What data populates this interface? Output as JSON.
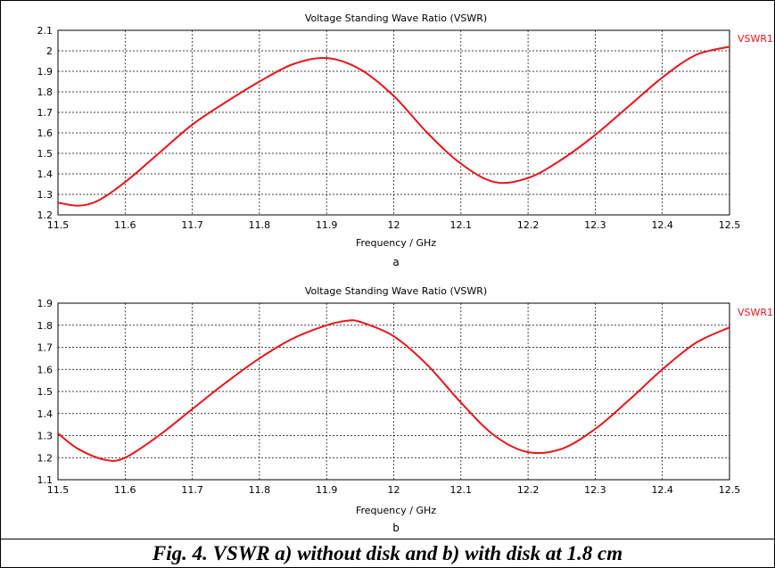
{
  "caption": "Fig. 4. VSWR a) without disk and b) with disk at 1.8 cm",
  "chart_data": [
    {
      "type": "line",
      "title": "Voltage Standing Wave Ratio (VSWR)",
      "xlabel": "Frequency / GHz",
      "ylabel": "",
      "panel_label": "a",
      "xlim": [
        11.5,
        12.5
      ],
      "ylim": [
        1.2,
        2.1
      ],
      "x_ticks": [
        "11.5",
        "11.6",
        "11.7",
        "11.8",
        "11.9",
        "12",
        "12.1",
        "12.2",
        "12.3",
        "12.4",
        "12.5"
      ],
      "y_ticks": [
        "1.2",
        "1.3",
        "1.4",
        "1.5",
        "1.6",
        "1.7",
        "1.8",
        "1.9",
        "2",
        "2.1"
      ],
      "grid": true,
      "legend_position": "right",
      "series": [
        {
          "name": "VSWR1",
          "color": "#e8141b",
          "x": [
            11.5,
            11.53,
            11.56,
            11.6,
            11.65,
            11.7,
            11.75,
            11.8,
            11.85,
            11.9,
            11.95,
            12.0,
            12.05,
            12.1,
            12.15,
            12.2,
            12.25,
            12.3,
            12.35,
            12.4,
            12.45,
            12.5
          ],
          "y": [
            1.26,
            1.245,
            1.27,
            1.36,
            1.5,
            1.64,
            1.75,
            1.85,
            1.935,
            1.965,
            1.91,
            1.78,
            1.6,
            1.45,
            1.36,
            1.38,
            1.47,
            1.59,
            1.73,
            1.87,
            1.98,
            2.02
          ]
        }
      ]
    },
    {
      "type": "line",
      "title": "Voltage Standing Wave Ratio (VSWR)",
      "xlabel": "Frequency / GHz",
      "ylabel": "",
      "panel_label": "b",
      "xlim": [
        11.5,
        12.5
      ],
      "ylim": [
        1.1,
        1.9
      ],
      "x_ticks": [
        "11.5",
        "11.6",
        "11.7",
        "11.8",
        "11.9",
        "12",
        "12.1",
        "12.2",
        "12.3",
        "12.4",
        "12.5"
      ],
      "y_ticks": [
        "1.1",
        "1.2",
        "1.3",
        "1.4",
        "1.5",
        "1.6",
        "1.7",
        "1.8",
        "1.9"
      ],
      "grid": true,
      "legend_position": "right",
      "series": [
        {
          "name": "VSWR1",
          "color": "#e8141b",
          "x": [
            11.5,
            11.53,
            11.57,
            11.6,
            11.65,
            11.7,
            11.75,
            11.8,
            11.85,
            11.9,
            11.93,
            11.95,
            12.0,
            12.05,
            12.1,
            12.15,
            12.2,
            12.25,
            12.3,
            12.35,
            12.4,
            12.45,
            12.5
          ],
          "y": [
            1.31,
            1.24,
            1.19,
            1.2,
            1.3,
            1.42,
            1.54,
            1.65,
            1.74,
            1.8,
            1.82,
            1.815,
            1.75,
            1.62,
            1.45,
            1.3,
            1.225,
            1.24,
            1.33,
            1.46,
            1.6,
            1.72,
            1.79
          ]
        }
      ]
    }
  ]
}
